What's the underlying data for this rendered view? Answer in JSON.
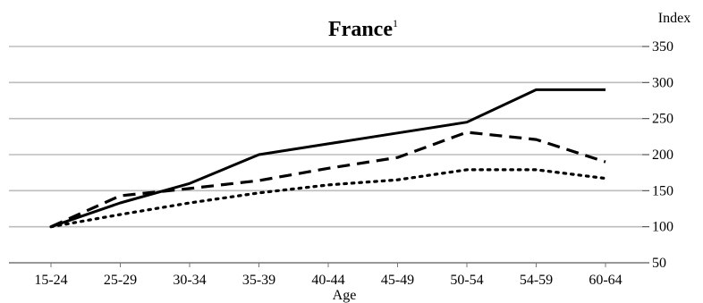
{
  "chart_data": {
    "type": "line",
    "title": "France",
    "title_footnote": "1",
    "xlabel": "Age",
    "ylabel": "Index",
    "categories": [
      "15-24",
      "25-29",
      "30-34",
      "35-39",
      "40-44",
      "45-49",
      "50-54",
      "54-59",
      "60-64"
    ],
    "yticks": [
      50,
      100,
      150,
      200,
      250,
      300,
      350
    ],
    "ylim": [
      50,
      350
    ],
    "grid": true,
    "y_axis_position": "right",
    "series": [
      {
        "style": "solid",
        "color": "#000000",
        "values": [
          100,
          133,
          160,
          200,
          215,
          230,
          245,
          290,
          290
        ]
      },
      {
        "style": "dashed",
        "color": "#000000",
        "values": [
          100,
          143,
          153,
          164,
          181,
          196,
          231,
          221,
          190
        ]
      },
      {
        "style": "dotted",
        "color": "#000000",
        "values": [
          100,
          117,
          133,
          147,
          158,
          165,
          179,
          179,
          167
        ]
      }
    ]
  }
}
